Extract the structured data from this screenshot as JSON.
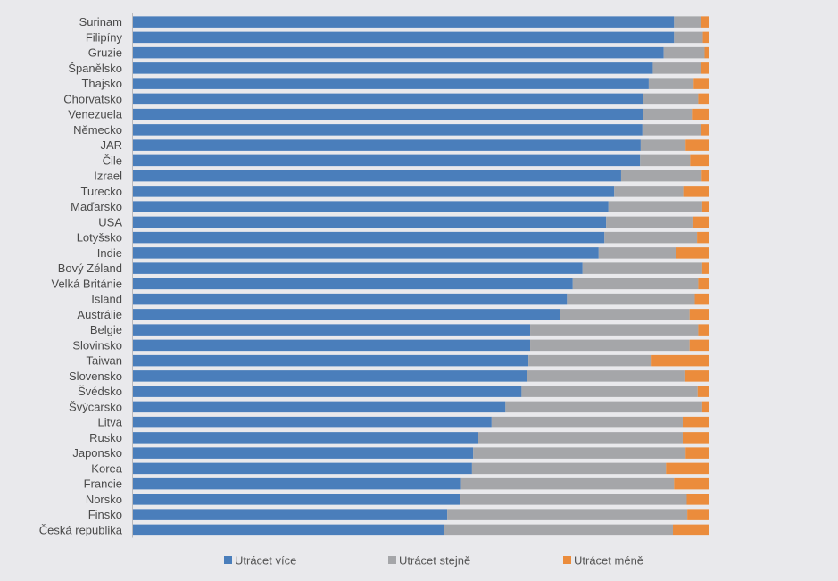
{
  "chart_data": {
    "type": "bar",
    "orientation": "horizontal",
    "stacked": true,
    "percent_stacked": true,
    "grid": false,
    "legend_position": "bottom",
    "categories": [
      "Surinam",
      "Filipíny",
      "Gruzie",
      "Španělsko",
      "Thajsko",
      "Chorvatsko",
      "Venezuela",
      "Německo",
      "JAR",
      "Čile",
      "Izrael",
      "Turecko",
      "Maďarsko",
      "USA",
      "Lotyšsko",
      "Indie",
      "Bový Zéland",
      "Velká Británie",
      "Island",
      "Austrálie",
      "Belgie",
      "Slovinsko",
      "Taiwan",
      "Slovensko",
      "Švédsko",
      "Švýcarsko",
      "Litva",
      "Rusko",
      "Japonsko",
      "Korea",
      "Francie",
      "Norsko",
      "Finsko",
      "Česká republika"
    ],
    "series": [
      {
        "name": "Utrácet více",
        "color": "#4a7ebb",
        "values": [
          94,
          94,
          92.2,
          90.3,
          89.6,
          88.6,
          88.6,
          88.5,
          88.2,
          88.1,
          84.8,
          83.6,
          82.6,
          82.2,
          81.9,
          80.9,
          78.1,
          76.4,
          75.4,
          74.2,
          69,
          69,
          68.7,
          68.4,
          67.5,
          64.7,
          62.3,
          60,
          59.1,
          58.9,
          57,
          56.9,
          54.6,
          54.1
        ]
      },
      {
        "name": "Utrácet stejně",
        "color": "#a5a6a9",
        "values": [
          4.6,
          5,
          7.1,
          8.3,
          7.8,
          9.6,
          8.5,
          10.2,
          7.8,
          8.7,
          14,
          12,
          16.3,
          15,
          16.1,
          13.5,
          20.8,
          21.8,
          22.2,
          22.5,
          29.2,
          27.7,
          21.4,
          27.4,
          30.6,
          34.2,
          33.2,
          35.5,
          36.9,
          33.7,
          37,
          39.3,
          41.7,
          39.7
        ]
      },
      {
        "name": "Utrácet méně",
        "color": "#eb8c3c",
        "values": [
          1.4,
          1,
          0.7,
          1.4,
          2.6,
          1.8,
          2.9,
          1.3,
          4,
          3.2,
          1.2,
          4.4,
          1.1,
          2.8,
          2,
          5.6,
          1.1,
          1.8,
          2.4,
          3.3,
          1.8,
          3.3,
          9.9,
          4.2,
          1.9,
          1.1,
          4.5,
          4.5,
          4,
          7.4,
          6,
          3.8,
          3.7,
          6.2
        ]
      }
    ]
  }
}
